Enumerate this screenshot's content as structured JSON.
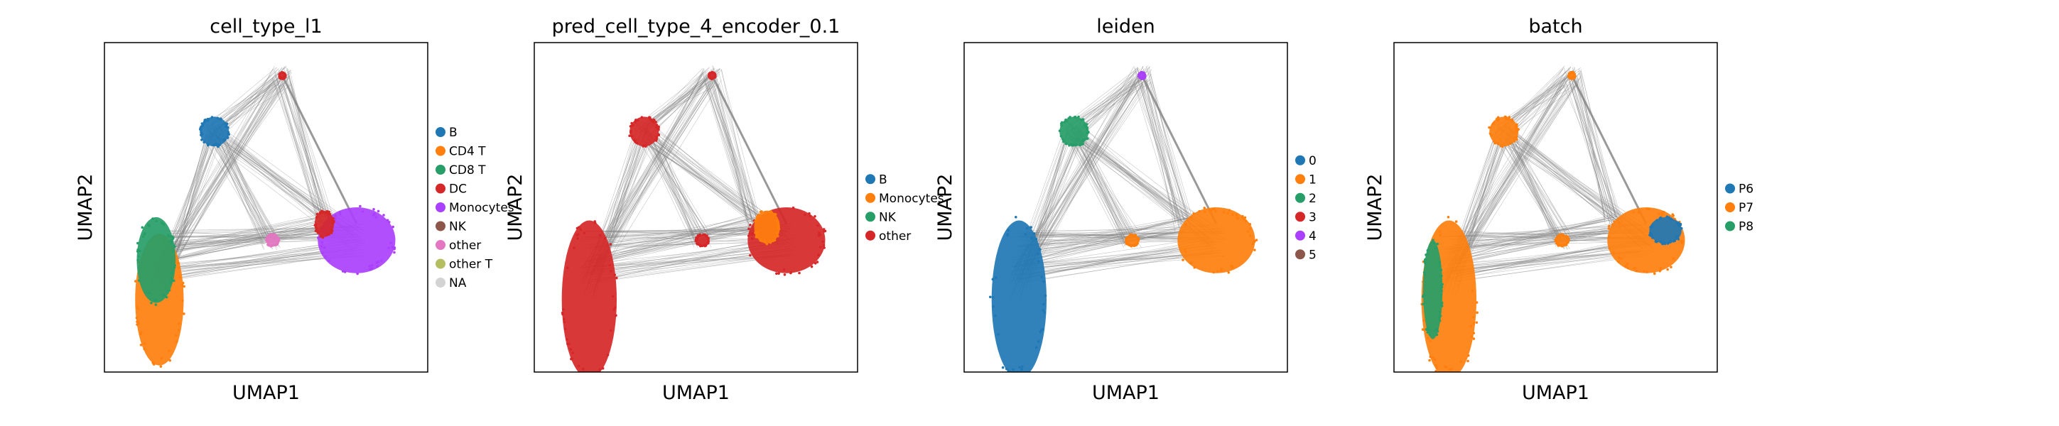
{
  "chart_data": [
    {
      "type": "scatter",
      "title": "cell_type_l1",
      "xlabel": "UMAP1",
      "ylabel": "UMAP2",
      "grid": false,
      "legend_placement": "right",
      "legend": [
        {
          "name": "B",
          "color": "#1f77b4"
        },
        {
          "name": "CD4 T",
          "color": "#ff7f0e"
        },
        {
          "name": "CD8 T",
          "color": "#279e68"
        },
        {
          "name": "DC",
          "color": "#d62728"
        },
        {
          "name": "Monocytes",
          "color": "#aa40fc"
        },
        {
          "name": "NK",
          "color": "#8c564b"
        },
        {
          "name": "other",
          "color": "#e377c2"
        },
        {
          "name": "other T",
          "color": "#b5bd61"
        },
        {
          "name": "NA",
          "color": "#d3d3d3"
        }
      ],
      "clusters": [
        {
          "name": "B",
          "color": "#1f77b4",
          "cx": 0.34,
          "cy": 0.73,
          "rx": 0.045,
          "ry": 0.045
        },
        {
          "name": "CD4 T",
          "color": "#ff7f0e",
          "cx": 0.17,
          "cy": 0.22,
          "rx": 0.075,
          "ry": 0.2
        },
        {
          "name": "CD8 T",
          "color": "#279e68",
          "cx": 0.16,
          "cy": 0.34,
          "rx": 0.06,
          "ry": 0.13
        },
        {
          "name": "Monocytes",
          "color": "#aa40fc",
          "cx": 0.78,
          "cy": 0.4,
          "rx": 0.12,
          "ry": 0.1
        },
        {
          "name": "DC",
          "color": "#d62728",
          "cx": 0.68,
          "cy": 0.45,
          "rx": 0.03,
          "ry": 0.04
        },
        {
          "name": "other",
          "color": "#e377c2",
          "cx": 0.52,
          "cy": 0.4,
          "rx": 0.02,
          "ry": 0.018
        },
        {
          "name": "DC",
          "color": "#d62728",
          "cx": 0.55,
          "cy": 0.9,
          "rx": 0.01,
          "ry": 0.01
        }
      ]
    },
    {
      "type": "scatter",
      "title": "pred_cell_type_4_encoder_0.1",
      "xlabel": "UMAP1",
      "ylabel": "UMAP2",
      "grid": false,
      "legend_placement": "right",
      "legend": [
        {
          "name": "B",
          "color": "#1f77b4"
        },
        {
          "name": "Monocytes",
          "color": "#ff7f0e"
        },
        {
          "name": "NK",
          "color": "#279e68"
        },
        {
          "name": "other",
          "color": "#d62728"
        }
      ],
      "clusters": [
        {
          "name": "other",
          "color": "#d62728",
          "cx": 0.34,
          "cy": 0.73,
          "rx": 0.045,
          "ry": 0.045
        },
        {
          "name": "other",
          "color": "#d62728",
          "cx": 0.17,
          "cy": 0.22,
          "rx": 0.085,
          "ry": 0.24
        },
        {
          "name": "other",
          "color": "#d62728",
          "cx": 0.78,
          "cy": 0.4,
          "rx": 0.12,
          "ry": 0.1
        },
        {
          "name": "Monocytes",
          "color": "#ff7f0e",
          "cx": 0.72,
          "cy": 0.44,
          "rx": 0.04,
          "ry": 0.05
        },
        {
          "name": "other",
          "color": "#d62728",
          "cx": 0.52,
          "cy": 0.4,
          "rx": 0.02,
          "ry": 0.018
        },
        {
          "name": "other",
          "color": "#d62728",
          "cx": 0.55,
          "cy": 0.9,
          "rx": 0.01,
          "ry": 0.01
        }
      ]
    },
    {
      "type": "scatter",
      "title": "leiden",
      "xlabel": "UMAP1",
      "ylabel": "UMAP2",
      "grid": false,
      "legend_placement": "right",
      "legend": [
        {
          "name": "0",
          "color": "#1f77b4"
        },
        {
          "name": "1",
          "color": "#ff7f0e"
        },
        {
          "name": "2",
          "color": "#279e68"
        },
        {
          "name": "3",
          "color": "#d62728"
        },
        {
          "name": "4",
          "color": "#aa40fc"
        },
        {
          "name": "5",
          "color": "#8c564b"
        }
      ],
      "clusters": [
        {
          "name": "2",
          "color": "#279e68",
          "cx": 0.34,
          "cy": 0.73,
          "rx": 0.045,
          "ry": 0.045
        },
        {
          "name": "0",
          "color": "#1f77b4",
          "cx": 0.17,
          "cy": 0.22,
          "rx": 0.085,
          "ry": 0.24
        },
        {
          "name": "1",
          "color": "#ff7f0e",
          "cx": 0.78,
          "cy": 0.4,
          "rx": 0.12,
          "ry": 0.1
        },
        {
          "name": "1",
          "color": "#ff7f0e",
          "cx": 0.52,
          "cy": 0.4,
          "rx": 0.02,
          "ry": 0.018
        },
        {
          "name": "4",
          "color": "#aa40fc",
          "cx": 0.55,
          "cy": 0.9,
          "rx": 0.01,
          "ry": 0.01
        }
      ]
    },
    {
      "type": "scatter",
      "title": "batch",
      "xlabel": "UMAP1",
      "ylabel": "UMAP2",
      "grid": false,
      "legend_placement": "right",
      "legend": [
        {
          "name": "P6",
          "color": "#1f77b4"
        },
        {
          "name": "P7",
          "color": "#ff7f0e"
        },
        {
          "name": "P8",
          "color": "#279e68"
        }
      ],
      "clusters": [
        {
          "name": "P7",
          "color": "#ff7f0e",
          "cx": 0.34,
          "cy": 0.73,
          "rx": 0.045,
          "ry": 0.045
        },
        {
          "name": "P7",
          "color": "#ff7f0e",
          "cx": 0.17,
          "cy": 0.22,
          "rx": 0.085,
          "ry": 0.24
        },
        {
          "name": "P8",
          "color": "#279e68",
          "cx": 0.12,
          "cy": 0.25,
          "rx": 0.03,
          "ry": 0.15
        },
        {
          "name": "P7",
          "color": "#ff7f0e",
          "cx": 0.78,
          "cy": 0.4,
          "rx": 0.12,
          "ry": 0.1
        },
        {
          "name": "P6",
          "color": "#1f77b4",
          "cx": 0.84,
          "cy": 0.43,
          "rx": 0.05,
          "ry": 0.04
        },
        {
          "name": "P7",
          "color": "#ff7f0e",
          "cx": 0.52,
          "cy": 0.4,
          "rx": 0.02,
          "ry": 0.018
        },
        {
          "name": "P7",
          "color": "#ff7f0e",
          "cx": 0.55,
          "cy": 0.9,
          "rx": 0.01,
          "ry": 0.01
        }
      ]
    }
  ]
}
